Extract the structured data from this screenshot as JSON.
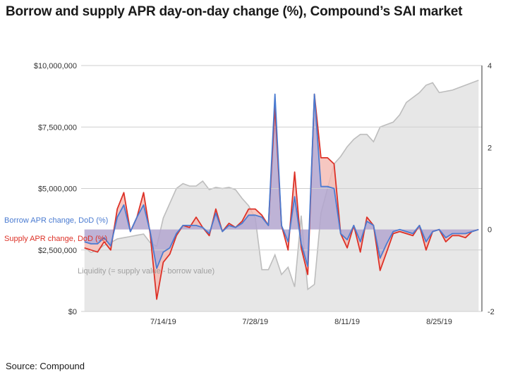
{
  "title": "Borrow and supply APR day-on-day change (%), Compound’s SAI market",
  "source": "Source: Compound",
  "chart_data": {
    "type": "area+line",
    "title": "Borrow and supply APR day-on-day change (%), Compound’s SAI market",
    "x_tick_labels": [
      "7/14/19",
      "7/28/19",
      "8/11/19",
      "8/25/19"
    ],
    "x_tick_days": [
      12,
      26,
      40,
      54
    ],
    "x_range": [
      -0.5,
      60.5
    ],
    "left_axis": {
      "ylim": [
        0,
        10000000
      ],
      "ticks": [
        0,
        2500000,
        5000000,
        7500000,
        10000000
      ],
      "tick_labels": [
        "$0",
        "$2,500,000",
        "$5,000,000",
        "$7,500,000",
        "$10,000,000"
      ]
    },
    "right_axis": {
      "ylim": [
        -2,
        4
      ],
      "ticks": [
        -2,
        0,
        2,
        4
      ],
      "tick_labels": [
        "-2",
        "0",
        "2",
        "4"
      ]
    },
    "colors": {
      "liquidity_fill": "#e7e7e7",
      "liquidity_line": "#bdbdbd",
      "borrow": "#4a7bd1",
      "supply": "#dd3127",
      "supply_fill": "#f4b9b2",
      "borrow_fill": "#b3a6cf"
    },
    "series": [
      {
        "name": "Liquidity (= supply value - borrow value)",
        "axis": "left",
        "values": [
          2600000,
          2400000,
          2500000,
          2700000,
          2800000,
          2950000,
          3000000,
          3050000,
          3100000,
          3150000,
          2800000,
          2650000,
          3800000,
          4400000,
          5000000,
          5200000,
          5100000,
          5100000,
          5300000,
          4950000,
          5050000,
          5000000,
          5050000,
          4950000,
          4600000,
          4300000,
          3800000,
          1700000,
          1700000,
          2300000,
          1500000,
          1800000,
          1000000,
          3900000,
          900000,
          1100000,
          4000000,
          5000000,
          6000000,
          6300000,
          6700000,
          7000000,
          7200000,
          7200000,
          6900000,
          7500000,
          7600000,
          7700000,
          8000000,
          8500000,
          8700000,
          8900000,
          9200000,
          9300000,
          8900000,
          8950000,
          9000000,
          9100000,
          9200000,
          9300000,
          9400000
        ]
      },
      {
        "name": "Borrow APR change, DoD (%)",
        "axis": "right",
        "values": [
          -0.3,
          -0.35,
          -0.35,
          -0.2,
          -0.4,
          0.3,
          0.6,
          -0.05,
          0.3,
          0.6,
          -0.05,
          -0.95,
          -0.55,
          -0.45,
          -0.1,
          0.1,
          0.1,
          0.1,
          0.05,
          -0.1,
          0.4,
          -0.05,
          0.1,
          0.05,
          0.15,
          0.35,
          0.35,
          0.3,
          0.1,
          3.3,
          0.1,
          -0.3,
          0.8,
          -0.35,
          -0.9,
          3.3,
          1.05,
          1.05,
          1.0,
          -0.1,
          -0.25,
          0.1,
          -0.3,
          0.2,
          0.1,
          -0.7,
          -0.35,
          -0.05,
          0.0,
          -0.05,
          -0.1,
          0.1,
          -0.3,
          -0.05,
          0.0,
          -0.2,
          -0.1,
          -0.1,
          -0.1,
          -0.05,
          0.0
        ],
        "note": "approximate readings; emphasis on visible peaks"
      },
      {
        "name": "Supply APR change, DoD (%)",
        "axis": "right",
        "values": [
          -0.45,
          -0.5,
          -0.55,
          -0.3,
          -0.5,
          0.5,
          0.9,
          -0.05,
          0.3,
          0.9,
          -0.1,
          -1.7,
          -0.8,
          -0.6,
          -0.15,
          0.1,
          0.05,
          0.3,
          0.05,
          -0.15,
          0.5,
          -0.05,
          0.15,
          0.05,
          0.2,
          0.5,
          0.5,
          0.35,
          0.1,
          3.0,
          0.1,
          -0.5,
          1.4,
          -0.45,
          -1.1,
          3.3,
          1.75,
          1.75,
          1.6,
          -0.1,
          -0.45,
          0.1,
          -0.55,
          0.3,
          0.1,
          -1.0,
          -0.55,
          -0.1,
          -0.05,
          -0.1,
          -0.15,
          0.1,
          -0.5,
          -0.05,
          0.0,
          -0.3,
          -0.15,
          -0.15,
          -0.2,
          -0.05,
          0.0
        ],
        "note": "approximate readings; emphasis on visible peaks"
      }
    ],
    "annotations": [
      "Borrow APR change, DoD (%)",
      "Supply APR change, DoD (%)",
      "Liquidity (= supply value - borrow value)"
    ]
  }
}
